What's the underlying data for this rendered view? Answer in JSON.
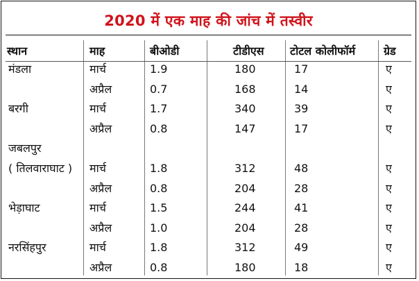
{
  "title": "2020 में एक माह की जांच में तस्वीर",
  "headers": {
    "place": "स्थान",
    "month": "माह",
    "bod": "बीओडी",
    "tds": "टीडीएस",
    "coliform": "टोटल कोलीफॉर्म",
    "grade": "ग्रेड"
  },
  "rows": [
    {
      "place": "मंडला",
      "month": "मार्च",
      "bod": "1.9",
      "tds": "180",
      "coliform": "17",
      "grade": "ए"
    },
    {
      "place": "",
      "month": "अप्रैल",
      "bod": "0.7",
      "tds": "168",
      "coliform": "14",
      "grade": "ए"
    },
    {
      "place": "बरगी",
      "month": "मार्च",
      "bod": "1.7",
      "tds": "340",
      "coliform": "39",
      "grade": "ए"
    },
    {
      "place": "",
      "month": "अप्रैल",
      "bod": "0.8",
      "tds": "147",
      "coliform": "17",
      "grade": "ए"
    },
    {
      "place": "जबलपुर",
      "month": "",
      "bod": "",
      "tds": "",
      "coliform": "",
      "grade": ""
    },
    {
      "place": "( तिलवाराघाट )",
      "month": "मार्च",
      "bod": "1.8",
      "tds": "312",
      "coliform": "48",
      "grade": "ए"
    },
    {
      "place": "",
      "month": "अप्रैल",
      "bod": "0.8",
      "tds": "204",
      "coliform": "28",
      "grade": "ए"
    },
    {
      "place": "भेड़ाघाट",
      "month": "मार्च",
      "bod": "1.5",
      "tds": "244",
      "coliform": "41",
      "grade": "ए"
    },
    {
      "place": "",
      "month": "अप्रैल",
      "bod": "1.0",
      "tds": "204",
      "coliform": "28",
      "grade": "ए"
    },
    {
      "place": "नरसिंहपुर",
      "month": "मार्च",
      "bod": "1.8",
      "tds": "312",
      "coliform": "49",
      "grade": "ए"
    },
    {
      "place": "",
      "month": "अप्रैल",
      "bod": "0.8",
      "tds": "180",
      "coliform": "18",
      "grade": "ए"
    }
  ]
}
